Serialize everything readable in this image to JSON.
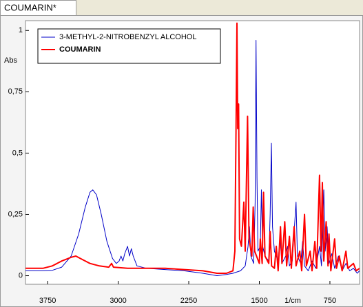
{
  "tab_title": "COUMARIN*",
  "chart_data": {
    "type": "line",
    "y_label": "Abs",
    "x_label": "1/cm",
    "xlim": [
      3985,
      435
    ],
    "ylim": [
      -0.035,
      1.04
    ],
    "xticks": [
      3750,
      3000,
      2250,
      1500,
      750
    ],
    "yticks": [
      0,
      {
        "value": 0.25,
        "label": "0,25"
      },
      {
        "value": 0.5,
        "label": "0,5"
      },
      {
        "value": 0.75,
        "label": "0,75"
      },
      1
    ],
    "legend": "upper left",
    "series": [
      {
        "name": "3-METHYL-2-NITROBENZYL ALCOHOL",
        "color": "#0000c8",
        "x": [
          3985,
          3800,
          3700,
          3600,
          3500,
          3420,
          3350,
          3300,
          3270,
          3230,
          3180,
          3120,
          3060,
          3020,
          2990,
          2970,
          2950,
          2930,
          2900,
          2880,
          2860,
          2840,
          2800,
          2700,
          2500,
          2300,
          2100,
          1950,
          1850,
          1780,
          1700,
          1650,
          1620,
          1605,
          1590,
          1560,
          1545,
          1535,
          1525,
          1515,
          1490,
          1478,
          1465,
          1440,
          1400,
          1385,
          1372,
          1360,
          1340,
          1300,
          1280,
          1260,
          1220,
          1200,
          1180,
          1150,
          1110,
          1095,
          1060,
          1040,
          1020,
          980,
          940,
          900,
          860,
          840,
          815,
          800,
          780,
          760,
          730,
          700,
          660,
          620,
          580,
          540,
          500,
          460,
          435
        ],
        "values": [
          0.02,
          0.02,
          0.022,
          0.035,
          0.08,
          0.17,
          0.28,
          0.34,
          0.35,
          0.33,
          0.25,
          0.14,
          0.07,
          0.05,
          0.06,
          0.08,
          0.06,
          0.09,
          0.12,
          0.08,
          0.11,
          0.08,
          0.04,
          0.03,
          0.025,
          0.02,
          0.01,
          0.0,
          0.005,
          0.01,
          0.02,
          0.04,
          0.12,
          0.2,
          0.08,
          0.05,
          0.3,
          0.96,
          0.4,
          0.1,
          0.12,
          0.35,
          0.12,
          0.08,
          0.06,
          0.25,
          0.54,
          0.2,
          0.1,
          0.06,
          0.15,
          0.05,
          0.08,
          0.12,
          0.04,
          0.06,
          0.3,
          0.08,
          0.05,
          0.14,
          0.04,
          0.02,
          0.06,
          0.03,
          0.12,
          0.04,
          0.35,
          0.1,
          0.2,
          0.05,
          0.09,
          0.03,
          0.08,
          0.02,
          0.05,
          0.02,
          0.03,
          0.01,
          0.02
        ]
      },
      {
        "name": "COUMARIN",
        "color": "#ff0000",
        "x": [
          3985,
          3800,
          3700,
          3600,
          3500,
          3450,
          3400,
          3300,
          3200,
          3100,
          3070,
          3050,
          2900,
          2700,
          2500,
          2300,
          2100,
          1950,
          1850,
          1780,
          1760,
          1745,
          1738,
          1730,
          1720,
          1710,
          1690,
          1665,
          1650,
          1625,
          1610,
          1580,
          1565,
          1550,
          1500,
          1490,
          1470,
          1455,
          1440,
          1400,
          1385,
          1370,
          1340,
          1320,
          1300,
          1275,
          1260,
          1230,
          1210,
          1180,
          1160,
          1130,
          1110,
          1070,
          1050,
          1020,
          1000,
          960,
          940,
          910,
          890,
          860,
          845,
          830,
          815,
          790,
          770,
          760,
          740,
          700,
          680,
          650,
          620,
          580,
          560,
          500,
          470,
          435
        ],
        "values": [
          0.03,
          0.03,
          0.04,
          0.06,
          0.075,
          0.08,
          0.07,
          0.05,
          0.04,
          0.035,
          0.05,
          0.035,
          0.03,
          0.03,
          0.03,
          0.025,
          0.02,
          0.01,
          0.01,
          0.02,
          0.1,
          0.7,
          1.03,
          0.6,
          0.7,
          0.15,
          0.12,
          0.3,
          0.1,
          0.65,
          0.15,
          0.08,
          0.28,
          0.1,
          0.05,
          0.15,
          0.05,
          0.34,
          0.08,
          0.05,
          0.18,
          0.04,
          0.03,
          0.12,
          0.02,
          0.2,
          0.05,
          0.22,
          0.04,
          0.16,
          0.03,
          0.2,
          0.04,
          0.1,
          0.02,
          0.25,
          0.04,
          0.1,
          0.02,
          0.14,
          0.03,
          0.41,
          0.1,
          0.38,
          0.06,
          0.22,
          0.04,
          0.17,
          0.02,
          0.15,
          0.03,
          0.08,
          0.02,
          0.1,
          0.03,
          0.05,
          0.02,
          0.03
        ]
      }
    ]
  }
}
